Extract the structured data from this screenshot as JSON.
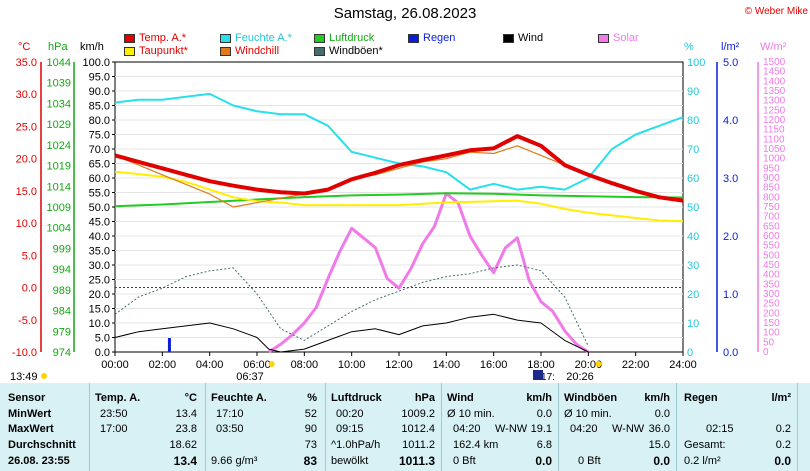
{
  "title": "Samstag, 26.08.2023",
  "credit": "© Weber Mike",
  "legend": [
    {
      "label": "Temp. A.*",
      "color": "#e00000"
    },
    {
      "label": "Feuchte A.*",
      "color": "#29dfea"
    },
    {
      "label": "Luftdruck",
      "color": "#22cc22"
    },
    {
      "label": "Regen",
      "color": "#0a1ed8"
    },
    {
      "label": "Wind",
      "color": "#000000"
    },
    {
      "label": "Solar",
      "color": "#f07ae8"
    },
    {
      "label": "Taupunkt*",
      "color": "#ffee00"
    },
    {
      "label": "Windchill",
      "color": "#e07a18"
    },
    {
      "label": "Windböen*",
      "color": "#446e6e"
    }
  ],
  "axes": {
    "temp_unit": "°C",
    "hpa_unit": "hPa",
    "kmh_unit": "km/h",
    "pct_unit": "%",
    "rain_unit": "l/m²",
    "solar_unit": "W/m²",
    "temp_ticks": [
      "35.0",
      "30.0",
      "25.0",
      "20.0",
      "15.0",
      "10.0",
      "5.0",
      "0.0",
      "-5.0",
      "-10.0"
    ],
    "hpa_ticks": [
      "1044",
      "1039",
      "1034",
      "1029",
      "1024",
      "1019",
      "1014",
      "1009",
      "1004",
      "999",
      "994",
      "989",
      "984",
      "979",
      "974"
    ],
    "kmh_ticks": [
      "100.0",
      "95.0",
      "90.0",
      "85.0",
      "80.0",
      "75.0",
      "70.0",
      "65.0",
      "60.0",
      "55.0",
      "50.0",
      "45.0",
      "40.0",
      "35.0",
      "30.0",
      "25.0",
      "20.0",
      "15.0",
      "10.0",
      "5.0",
      "0.0"
    ],
    "pct_ticks": [
      "100",
      "90",
      "80",
      "70",
      "60",
      "50",
      "40",
      "30",
      "20",
      "10",
      "0"
    ],
    "rain_ticks": [
      "5.0",
      "4.0",
      "3.0",
      "2.0",
      "1.0",
      "0.0"
    ],
    "solar_ticks": [
      "1500",
      "1450",
      "1400",
      "1350",
      "1300",
      "1250",
      "1200",
      "1150",
      "1100",
      "1050",
      "1000",
      "950",
      "900",
      "850",
      "800",
      "750",
      "700",
      "650",
      "600",
      "550",
      "500",
      "450",
      "400",
      "350",
      "300",
      "250",
      "200",
      "150",
      "100",
      "50",
      "0"
    ],
    "time_ticks": [
      "00:00",
      "02:00",
      "04:00",
      "06:00",
      "08:00",
      "10:00",
      "12:00",
      "14:00",
      "16:00",
      "18:00",
      "20:00",
      "22:00",
      "24:00"
    ],
    "sunrise": "06:37",
    "sunset": "20:26",
    "daylight": "13:49",
    "moon": "17:"
  },
  "chart_data": {
    "type": "line",
    "x_unit": "hours",
    "xlim": [
      0,
      24
    ],
    "series": [
      {
        "name": "Temp. A.*",
        "axis": "°C",
        "color": "#e00000",
        "x": [
          0,
          1,
          2,
          3,
          4,
          5,
          6,
          7,
          8,
          9,
          10,
          11,
          12,
          13,
          14,
          15,
          16,
          17,
          18,
          19,
          20,
          21,
          22,
          23,
          24
        ],
        "y": [
          20.5,
          19.5,
          18.5,
          17.5,
          16.5,
          15.8,
          15.2,
          14.8,
          14.6,
          15.2,
          16.8,
          17.8,
          19.0,
          19.8,
          20.5,
          21.3,
          21.6,
          23.5,
          22.0,
          19.0,
          17.5,
          16.2,
          15.0,
          14.0,
          13.5
        ]
      },
      {
        "name": "Feuchte A.*",
        "axis": "%",
        "color": "#29dfea",
        "x": [
          0,
          1,
          2,
          3,
          4,
          5,
          6,
          7,
          8,
          9,
          10,
          11,
          12,
          13,
          14,
          15,
          16,
          17,
          18,
          19,
          20,
          21,
          22,
          23,
          24
        ],
        "y": [
          86,
          87,
          87,
          88,
          89,
          85,
          83,
          82,
          82,
          78,
          69,
          67,
          65,
          64,
          62,
          56,
          58,
          56,
          57,
          56,
          60,
          70,
          75,
          78,
          81
        ]
      },
      {
        "name": "Luftdruck",
        "axis": "hPa",
        "color": "#22cc22",
        "x": [
          0,
          2,
          4,
          6,
          8,
          10,
          12,
          14,
          16,
          18,
          20,
          22,
          24
        ],
        "y": [
          1009.2,
          1009.6,
          1010.2,
          1010.8,
          1011.4,
          1011.8,
          1012.0,
          1012.3,
          1012.2,
          1011.8,
          1011.6,
          1011.4,
          1011.3
        ]
      },
      {
        "name": "Taupunkt*",
        "axis": "°C",
        "color": "#ffee00",
        "x": [
          0,
          1,
          2,
          3,
          4,
          5,
          6,
          7,
          8,
          10,
          12,
          14,
          16,
          17,
          18,
          19,
          20,
          21,
          22,
          23,
          24
        ],
        "y": [
          18.0,
          17.6,
          17.2,
          16.4,
          15.2,
          14.0,
          13.4,
          13.2,
          12.8,
          12.8,
          12.8,
          13.2,
          13.4,
          13.5,
          13.0,
          12.2,
          11.6,
          11.2,
          10.8,
          10.4,
          10.3
        ]
      },
      {
        "name": "Windchill",
        "axis": "°C",
        "color": "#e07a18",
        "x": [
          0,
          1,
          2,
          3,
          4,
          5,
          9,
          10,
          11,
          12,
          13,
          14,
          15,
          16,
          17,
          18,
          19
        ],
        "y": [
          20.5,
          19.0,
          17.5,
          16.0,
          14.5,
          12.5,
          15.2,
          16.8,
          17.5,
          18.5,
          19.5,
          20.0,
          21.0,
          20.8,
          22.0,
          20.5,
          19.0
        ]
      },
      {
        "name": "Wind",
        "axis": "km/h",
        "color": "#000000",
        "x": [
          0,
          1,
          2,
          3,
          4,
          5,
          6,
          6.5,
          7,
          8,
          9,
          10,
          11,
          12,
          13,
          14,
          15,
          16,
          17,
          18,
          19,
          19.5,
          20
        ],
        "y": [
          5,
          7,
          8,
          9,
          10,
          8,
          5,
          1,
          0,
          1,
          4,
          7,
          8,
          6,
          9,
          10,
          12,
          13,
          11,
          10,
          4,
          2,
          0
        ]
      },
      {
        "name": "Windböen*",
        "axis": "km/h",
        "color": "#446e6e",
        "x": [
          0,
          1,
          2,
          3,
          4,
          5,
          6,
          7,
          8,
          9,
          10,
          11,
          12,
          13,
          14,
          15,
          16,
          17,
          18,
          19,
          20
        ],
        "y": [
          13,
          19,
          22,
          26,
          28,
          29,
          20,
          8,
          4,
          9,
          14,
          18,
          21,
          24,
          26,
          27,
          29,
          30,
          28,
          19,
          2
        ]
      },
      {
        "name": "Solar",
        "axis": "W/m²",
        "color": "#f07ae8",
        "x": [
          6.5,
          7,
          7.5,
          8,
          8.5,
          9,
          9.5,
          10,
          10.5,
          11,
          11.5,
          12,
          12.5,
          13,
          13.5,
          14,
          14.5,
          15,
          15.5,
          16,
          16.5,
          17,
          17.5,
          18,
          18.5,
          19,
          19.5,
          20
        ],
        "y": [
          0,
          40,
          90,
          150,
          230,
          380,
          520,
          640,
          590,
          540,
          380,
          330,
          430,
          560,
          650,
          820,
          770,
          600,
          500,
          410,
          540,
          590,
          370,
          260,
          210,
          110,
          40,
          0
        ]
      },
      {
        "name": "Regen",
        "axis": "l/m²",
        "color": "#0a1ed8",
        "x": [
          2.3
        ],
        "y": [
          0.2
        ]
      }
    ]
  },
  "table": {
    "sensor": {
      "header": "Sensor",
      "rows": [
        "MinWert",
        "MaxWert",
        "Durchschnitt"
      ],
      "current": "26.08. 23:55"
    },
    "temp": {
      "header": "Temp. A.",
      "unit": "°C",
      "min_time": "23:50",
      "min": "13.4",
      "max_time": "17:00",
      "max": "23.8",
      "avg": "18.62",
      "current": "13.4"
    },
    "hum": {
      "header": "Feuchte A.",
      "unit": "%",
      "min_time": "17:10",
      "min": "52",
      "max_time": "03:50",
      "max": "90",
      "avg": "73",
      "extra": "9.66 g/m³",
      "current": "83"
    },
    "pressure": {
      "header": "Luftdruck",
      "unit": "hPa",
      "min_time": "00:20",
      "min": "1009.2",
      "max_time": "09:15",
      "max": "1012.4",
      "trend": "^1.0hPa/h",
      "avg": "1011.2",
      "extra": "bewölkt",
      "current": "1011.3"
    },
    "wind": {
      "header": "Wind",
      "unit": "km/h",
      "r1_label": "Ø 10 min.",
      "r1_val": "0.0",
      "r2_time": "04:20",
      "r2_dir": "W-NW",
      "r2_val": "19.1",
      "r3_label": "162.4 km",
      "r3_val": "6.8",
      "extra": "0 Bft",
      "current": "0.0"
    },
    "gust": {
      "header": "Windböen",
      "unit": "km/h",
      "r1_label": "Ø 10 min.",
      "r1_val": "0.0",
      "r2_time": "04:20",
      "r2_dir": "W-NW",
      "r2_val": "36.0",
      "r3_val": "15.0",
      "extra": "0 Bft",
      "current": "0.0"
    },
    "rain": {
      "header": "Regen",
      "unit": "l/m²",
      "r2_time": "02:15",
      "r2_val": "0.2",
      "r3_label": "Gesamt:",
      "r3_val": "0.2",
      "extra": "0.2 l/m²",
      "current": "0.0"
    }
  }
}
